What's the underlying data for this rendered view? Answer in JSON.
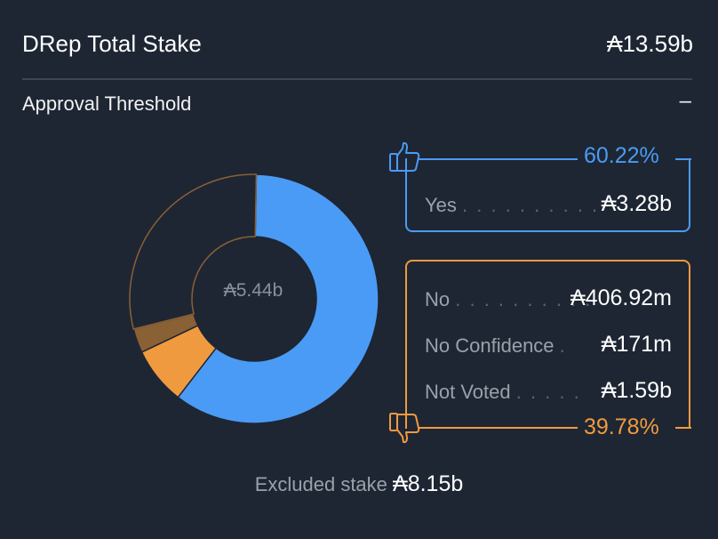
{
  "header": {
    "title": "DRep Total Stake",
    "total": "₳13.59b"
  },
  "threshold": {
    "label": "Approval Threshold",
    "toggle": "–"
  },
  "chart_data": {
    "type": "pie",
    "center_label": "₳5.44b",
    "slices": [
      {
        "name": "Yes",
        "value": 3.28,
        "color": "#4a9bf5"
      },
      {
        "name": "No",
        "value": 0.40692,
        "color": "#f09a40"
      },
      {
        "name": "No Confidence",
        "value": 0.171,
        "color": "#8a6035"
      },
      {
        "name": "Not Voted",
        "value": 1.59,
        "color": "#1e2633"
      }
    ]
  },
  "yes": {
    "percent": "60.22%",
    "label": "Yes",
    "dots": ". . . . . . . . . .",
    "value": "₳3.28b",
    "color": "#4a9bf5"
  },
  "no_group": {
    "percent": "39.78%",
    "color": "#f09a40",
    "items": [
      {
        "label": "No",
        "dots": ". . . . . . . . . .",
        "value": "₳406.92m"
      },
      {
        "label": "No Confidence",
        "dots": ".",
        "value": "₳171m"
      },
      {
        "label": "Not Voted",
        "dots": ". . . . .",
        "value": "₳1.59b"
      }
    ]
  },
  "excluded": {
    "label": "Excluded stake",
    "value": "₳8.15b"
  },
  "icons": {
    "up": "thumbs-up-icon",
    "down": "thumbs-down-icon"
  }
}
